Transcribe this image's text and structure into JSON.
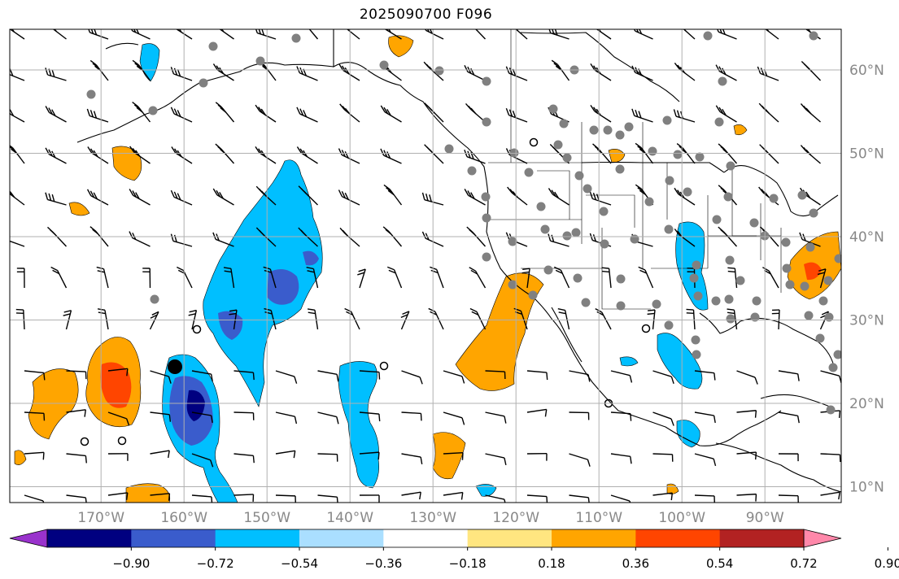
{
  "title": "2025090700 F096",
  "map": {
    "lon_ticks": [
      "170°W",
      "160°W",
      "150°W",
      "140°W",
      "130°W",
      "120°W",
      "110°W",
      "100°W",
      "90°W"
    ],
    "lat_ticks": [
      "60°N",
      "50°N",
      "40°N",
      "30°N",
      "20°N",
      "10°N"
    ],
    "lon_values": [
      -170,
      -160,
      -150,
      -140,
      -130,
      -120,
      -110,
      -100,
      -90
    ],
    "lat_values": [
      60,
      50,
      40,
      30,
      20,
      10
    ],
    "lon_range": [
      -180,
      -80
    ],
    "lat_range": [
      8,
      65
    ],
    "grid": true
  },
  "colorbar": {
    "tick_labels": [
      "−0.90",
      "−0.72",
      "−0.54",
      "−0.36",
      "−0.18",
      "0.18",
      "0.36",
      "0.54",
      "0.72",
      "0.90"
    ],
    "colors": [
      "#9932cc",
      "#000080",
      "#3a5ccc",
      "#00bfff",
      "#aadfff",
      "#ffffff",
      "#ffe680",
      "#ffa500",
      "#ff4500",
      "#b22222",
      "#ff88aa"
    ]
  },
  "colors": {
    "land": "#000000",
    "grid": "#b0b0b0",
    "station": "#808080"
  }
}
